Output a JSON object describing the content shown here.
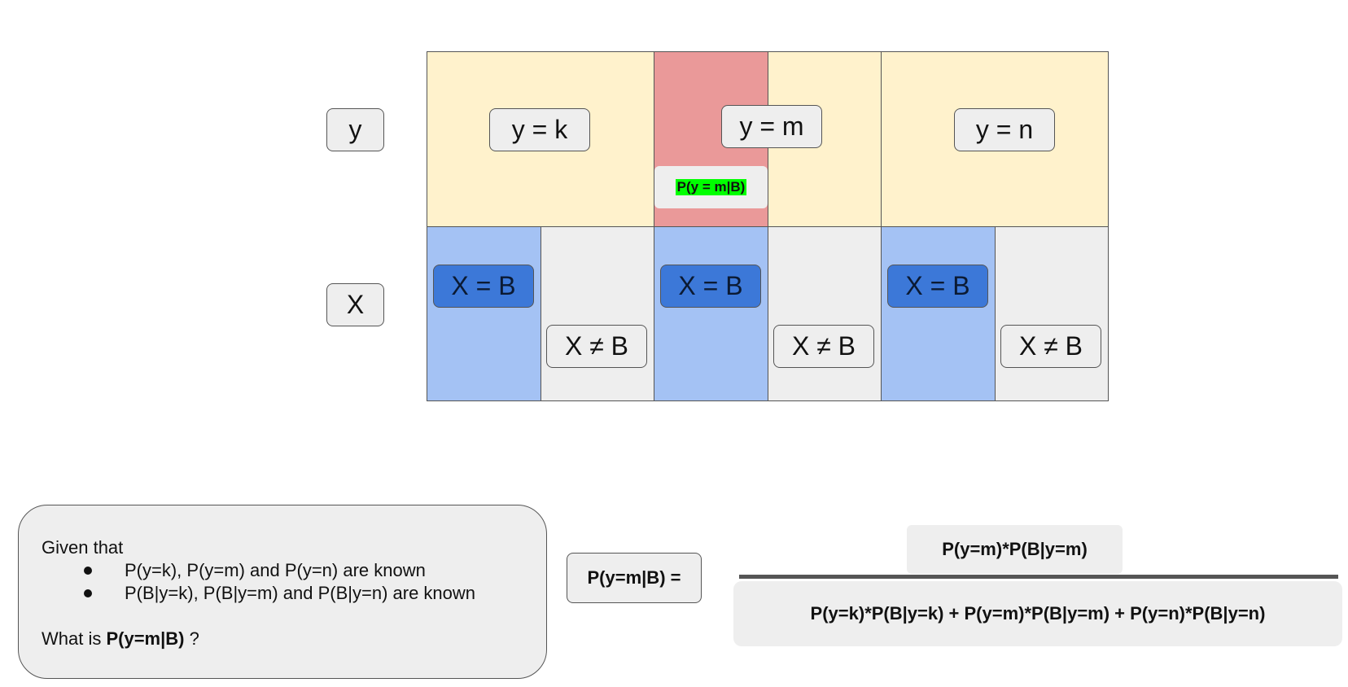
{
  "row_labels": {
    "y": "y",
    "x": "X"
  },
  "y_values": [
    "y = k",
    "y = m",
    "y = n"
  ],
  "x_labels": {
    "eq": [
      "X = B",
      "X = B",
      "X = B"
    ],
    "neq": [
      "X ≠ B",
      "X ≠ B",
      "X ≠ B"
    ]
  },
  "highlight": "P(y = m|B)",
  "info": {
    "intro": "Given that",
    "bullets": [
      "P(y=k), P(y=m) and P(y=n) are known",
      "P(B|y=k), P(B|y=m) and P(B|y=n) are known"
    ],
    "question_prefix": "What is ",
    "question_bold": "P(y=m|B)",
    "question_suffix": " ?"
  },
  "equation": {
    "lhs": "P(y=m|B) =",
    "numerator": "P(y=m)*P(B|y=m)",
    "denominator": "P(y=k)*P(B|y=k) + P(y=m)*P(B|y=m) + P(y=n)*P(B|y=n)"
  },
  "colors": {
    "y_region": "#fff2cc",
    "selected_region": "#ea9999",
    "x_equals_b_region": "#a4c2f4",
    "x_not_b_region": "#eeeeee",
    "x_equals_b_label": "#3c78d8",
    "highlight": "#00ff00"
  }
}
